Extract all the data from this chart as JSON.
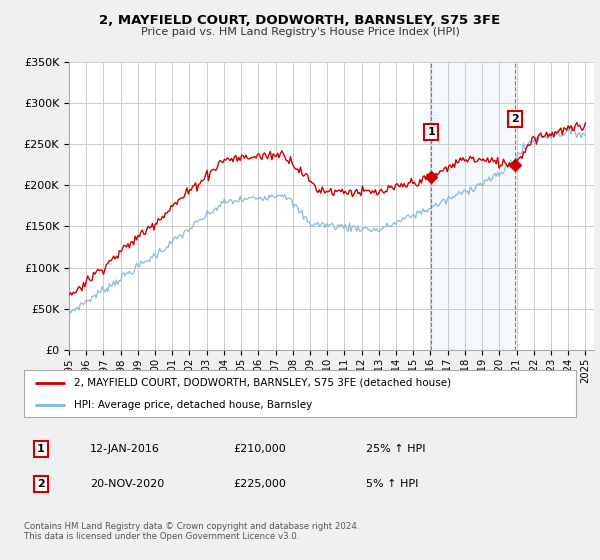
{
  "title": "2, MAYFIELD COURT, DODWORTH, BARNSLEY, S75 3FE",
  "subtitle": "Price paid vs. HM Land Registry's House Price Index (HPI)",
  "ylim": [
    0,
    350000
  ],
  "xlim_start": 1995.0,
  "xlim_end": 2025.5,
  "hpi_color": "#7fb3d8",
  "price_color": "#cc0000",
  "sale1_date": 2016.04,
  "sale1_price": 210000,
  "sale2_date": 2020.9,
  "sale2_price": 225000,
  "legend_line1": "2, MAYFIELD COURT, DODWORTH, BARNSLEY, S75 3FE (detached house)",
  "legend_line2": "HPI: Average price, detached house, Barnsley",
  "sale1_text": "12-JAN-2016",
  "sale1_amount": "£210,000",
  "sale1_hpi": "25% ↑ HPI",
  "sale2_text": "20-NOV-2020",
  "sale2_amount": "£225,000",
  "sale2_hpi": "5% ↑ HPI",
  "footer": "Contains HM Land Registry data © Crown copyright and database right 2024.\nThis data is licensed under the Open Government Licence v3.0.",
  "bg_color": "#f0f0f0",
  "plot_bg": "#ffffff",
  "grid_color": "#cccccc",
  "highlight_bg": "#dce8f5"
}
